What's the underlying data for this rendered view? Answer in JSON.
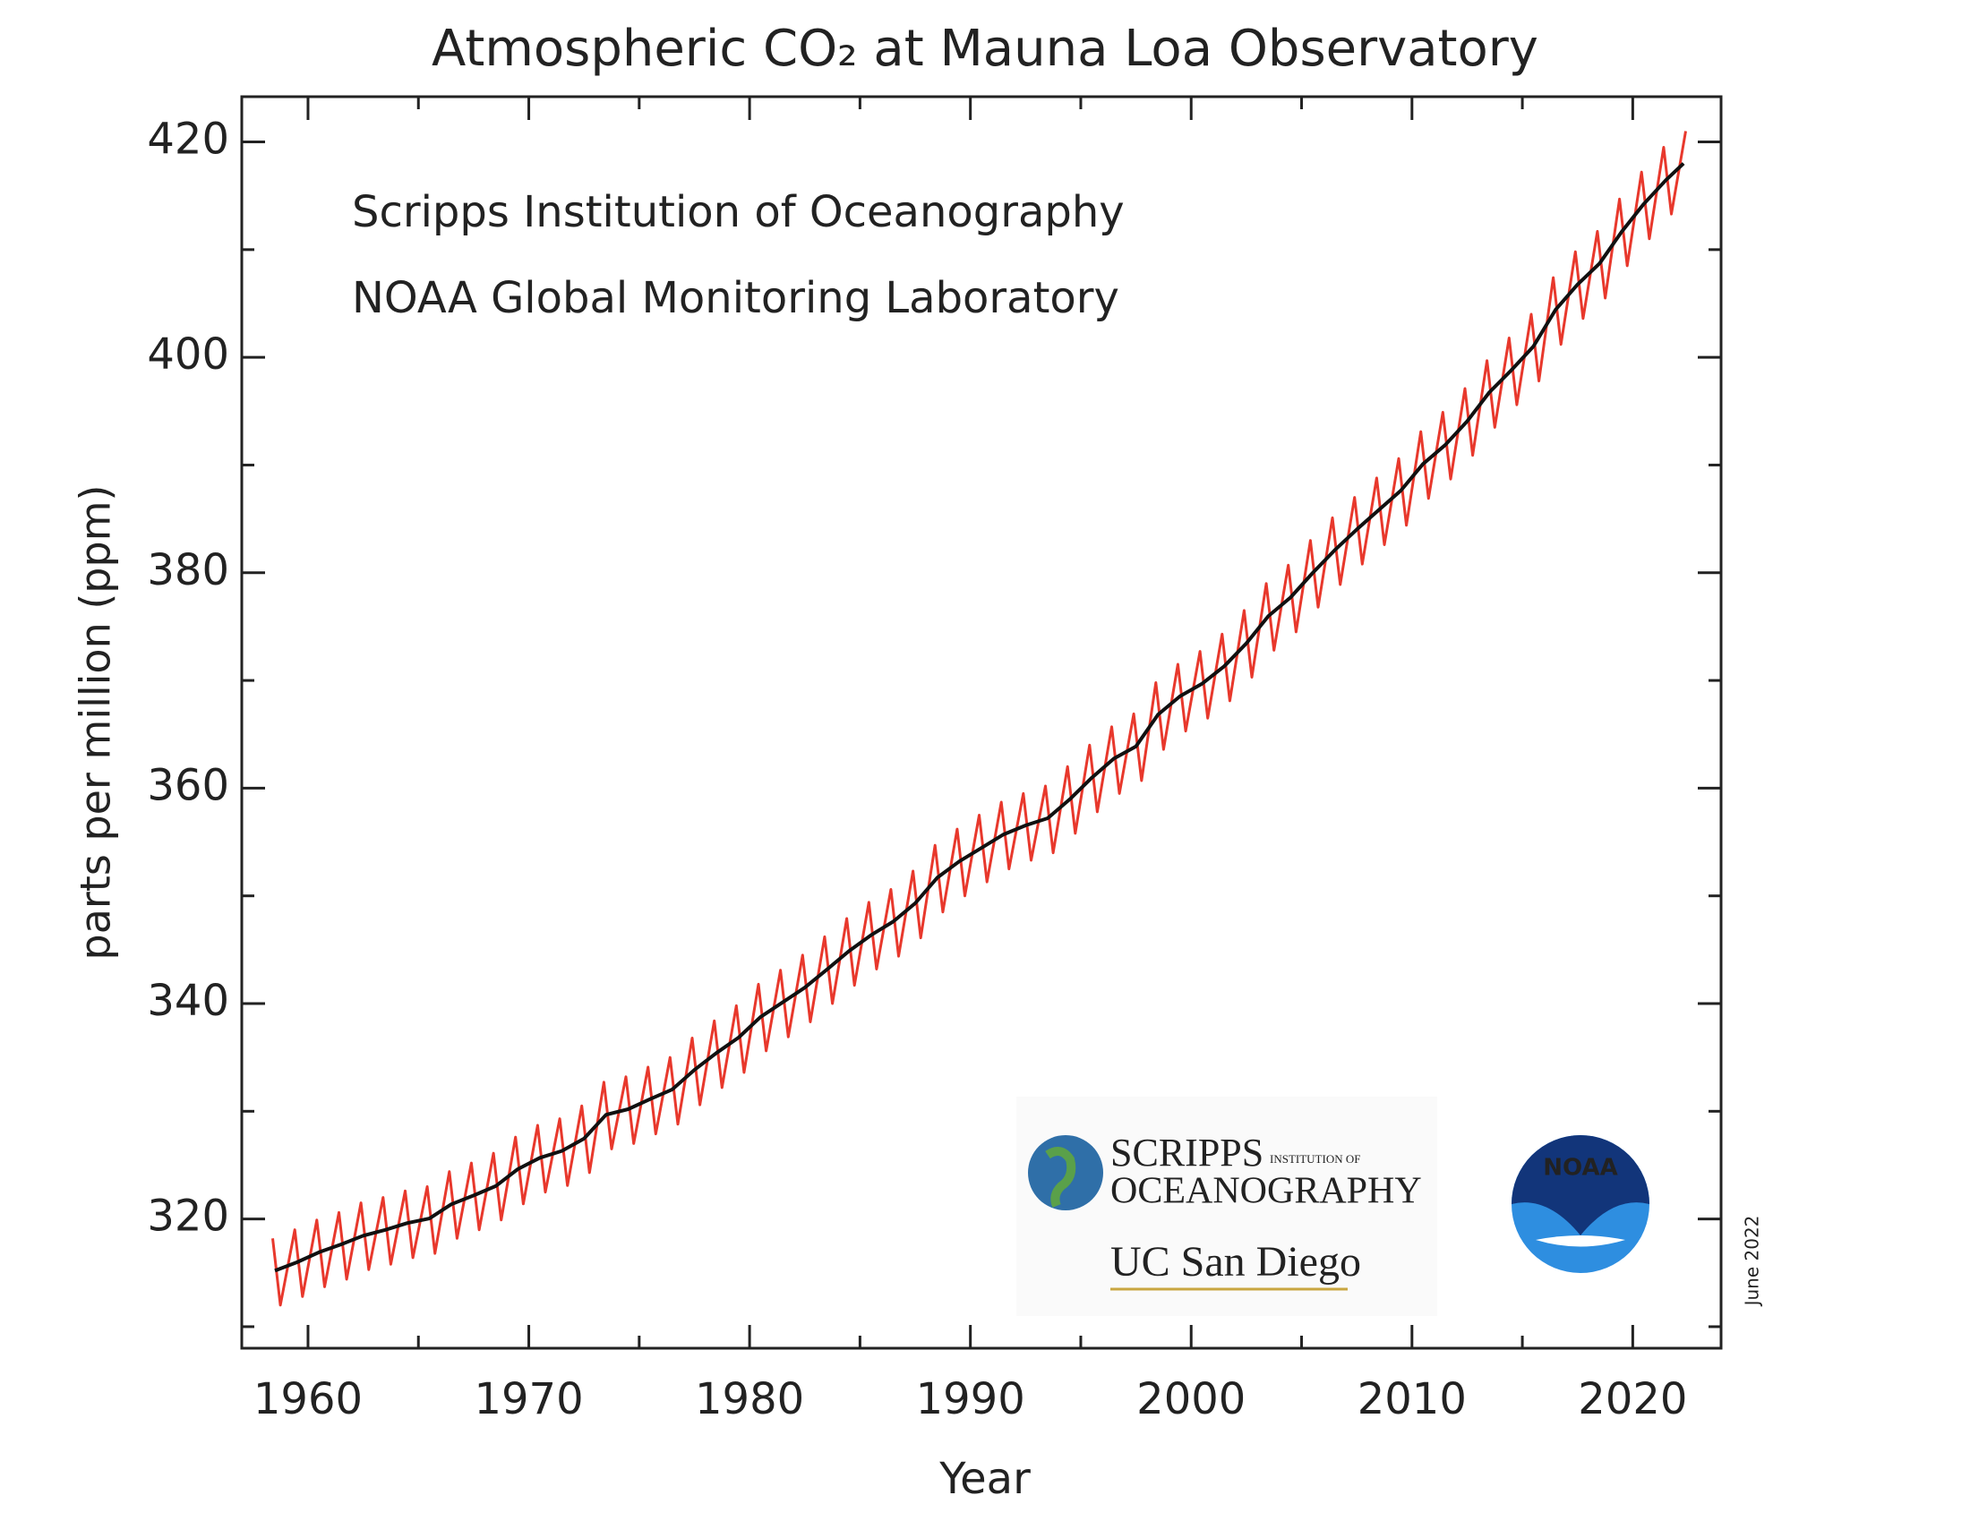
{
  "chart_data": {
    "type": "line",
    "title": "Atmospheric CO₂ at Mauna Loa Observatory",
    "x_label": "Year",
    "y_label": "parts per million (ppm)",
    "annotations": [
      "Scripps Institution of Oceanography",
      "NOAA Global Monitoring Laboratory",
      "June 2022"
    ],
    "logos": {
      "scripps": "SCRIPPS",
      "scripps_sub": "INSTITUTION OF",
      "oceanography": "OCEANOGRAPHY",
      "ucsd": "UC San Diego",
      "noaa": "NOAA"
    },
    "xlim": [
      1957,
      2024
    ],
    "ylim": [
      308,
      424.2
    ],
    "xticks": [
      1960,
      1970,
      1980,
      1990,
      2000,
      2010,
      2020
    ],
    "minor_xticks": [
      1965,
      1975,
      1985,
      1995,
      2005,
      2015
    ],
    "yticks": [
      320,
      340,
      360,
      380,
      400,
      420
    ],
    "minor_yticks": [
      310,
      330,
      350,
      370,
      390,
      410
    ],
    "series": [
      {
        "color": "#e8382c",
        "x": [
          1958.4,
          1958.75,
          1959.4,
          1959.75,
          1960.4,
          1960.75,
          1961.4,
          1961.75,
          1962.4,
          1962.75,
          1963.4,
          1963.75,
          1964.4,
          1964.75,
          1965.4,
          1965.75,
          1966.4,
          1966.75,
          1967.4,
          1967.75,
          1968.4,
          1968.75,
          1969.4,
          1969.75,
          1970.4,
          1970.75,
          1971.4,
          1971.75,
          1972.4,
          1972.75,
          1973.4,
          1973.75,
          1974.4,
          1974.75,
          1975.4,
          1975.75,
          1976.4,
          1976.75,
          1977.4,
          1977.75,
          1978.4,
          1978.75,
          1979.4,
          1979.75,
          1980.4,
          1980.75,
          1981.4,
          1981.75,
          1982.4,
          1982.75,
          1983.4,
          1983.75,
          1984.4,
          1984.75,
          1985.4,
          1985.75,
          1986.4,
          1986.75,
          1987.4,
          1987.75,
          1988.4,
          1988.75,
          1989.4,
          1989.75,
          1990.4,
          1990.75,
          1991.4,
          1991.75,
          1992.4,
          1992.75,
          1993.4,
          1993.75,
          1994.4,
          1994.75,
          1995.4,
          1995.75,
          1996.4,
          1996.75,
          1997.4,
          1997.75,
          1998.4,
          1998.75,
          1999.4,
          1999.75,
          2000.4,
          2000.75,
          2001.4,
          2001.75,
          2002.4,
          2002.75,
          2003.4,
          2003.75,
          2004.4,
          2004.75,
          2005.4,
          2005.75,
          2006.4,
          2006.75,
          2007.4,
          2007.75,
          2008.4,
          2008.75,
          2009.4,
          2009.75,
          2010.4,
          2010.75,
          2011.4,
          2011.75,
          2012.4,
          2012.75,
          2013.4,
          2013.75,
          2014.4,
          2014.75,
          2015.4,
          2015.75,
          2016.4,
          2016.75,
          2017.4,
          2017.75,
          2018.4,
          2018.75,
          2019.4,
          2019.75,
          2020.4,
          2020.75,
          2021.4,
          2021.75,
          2022.4
        ],
        "values": [
          318.2,
          312.0,
          319.0,
          312.8,
          319.9,
          313.7,
          320.6,
          314.4,
          321.5,
          315.3,
          322.0,
          315.8,
          322.6,
          316.4,
          323.0,
          316.8,
          324.4,
          318.2,
          325.2,
          319.0,
          326.1,
          319.9,
          327.6,
          321.4,
          328.7,
          322.5,
          329.3,
          323.1,
          330.5,
          324.3,
          332.7,
          326.5,
          333.2,
          327.0,
          334.1,
          327.9,
          335.0,
          328.8,
          336.8,
          330.6,
          338.4,
          332.2,
          339.8,
          333.6,
          341.8,
          335.6,
          343.1,
          336.9,
          344.5,
          338.3,
          346.2,
          340.0,
          347.9,
          341.7,
          349.4,
          343.2,
          350.6,
          344.4,
          352.3,
          346.1,
          354.7,
          348.5,
          356.2,
          350.0,
          357.5,
          351.3,
          358.7,
          352.5,
          359.5,
          353.3,
          360.2,
          354.0,
          362.0,
          355.8,
          364.0,
          357.8,
          365.7,
          359.5,
          366.9,
          360.7,
          369.8,
          363.6,
          371.5,
          365.3,
          372.7,
          366.5,
          374.3,
          368.1,
          376.5,
          370.3,
          379.0,
          372.8,
          380.7,
          374.5,
          383.0,
          376.8,
          385.1,
          378.9,
          387.0,
          380.8,
          388.8,
          382.6,
          390.6,
          384.4,
          393.1,
          386.9,
          394.9,
          388.7,
          397.1,
          390.9,
          399.7,
          393.5,
          401.8,
          395.6,
          404.0,
          397.8,
          407.4,
          401.2,
          409.8,
          403.6,
          411.7,
          405.5,
          414.7,
          408.5,
          417.2,
          411.0,
          419.5,
          413.3,
          421.0
        ]
      },
      {
        "color": "#111111",
        "x": [
          1958.5,
          1959.5,
          1960.5,
          1961.5,
          1962.5,
          1963.5,
          1964.5,
          1965.5,
          1966.5,
          1967.5,
          1968.5,
          1969.5,
          1970.5,
          1971.5,
          1972.5,
          1973.5,
          1974.5,
          1975.5,
          1976.5,
          1977.5,
          1978.5,
          1979.5,
          1980.5,
          1981.5,
          1982.5,
          1983.5,
          1984.5,
          1985.5,
          1986.5,
          1987.5,
          1988.5,
          1989.5,
          1990.5,
          1991.5,
          1992.5,
          1993.5,
          1994.5,
          1995.5,
          1996.5,
          1997.5,
          1998.5,
          1999.5,
          2000.5,
          2001.5,
          2002.5,
          2003.5,
          2004.5,
          2005.5,
          2006.5,
          2007.5,
          2008.5,
          2009.5,
          2010.5,
          2011.5,
          2012.5,
          2013.5,
          2014.5,
          2015.5,
          2016.5,
          2017.5,
          2018.5,
          2019.5,
          2020.5,
          2021.5,
          2022.3
        ],
        "values": [
          315.2,
          315.98,
          316.91,
          317.64,
          318.45,
          318.99,
          319.62,
          320.04,
          321.37,
          322.18,
          323.05,
          324.62,
          325.68,
          326.32,
          327.46,
          329.68,
          330.19,
          331.13,
          332.03,
          333.84,
          335.41,
          336.84,
          338.76,
          340.12,
          341.48,
          343.15,
          344.87,
          346.35,
          347.61,
          349.31,
          351.69,
          353.2,
          354.45,
          355.7,
          356.54,
          357.21,
          358.96,
          360.97,
          362.74,
          363.88,
          366.84,
          368.54,
          369.71,
          371.32,
          373.45,
          375.98,
          377.7,
          379.98,
          382.09,
          384.02,
          385.83,
          387.64,
          390.1,
          391.85,
          394.06,
          396.74,
          398.81,
          401.01,
          404.41,
          406.76,
          408.72,
          411.66,
          414.24,
          416.45,
          418.0
        ]
      }
    ]
  }
}
